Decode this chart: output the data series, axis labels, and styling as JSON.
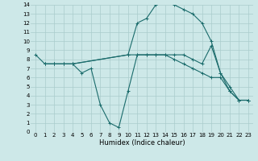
{
  "xlabel": "Humidex (Indice chaleur)",
  "xlim": [
    -0.5,
    23.5
  ],
  "ylim": [
    0,
    14
  ],
  "xticks": [
    0,
    1,
    2,
    3,
    4,
    5,
    6,
    7,
    8,
    9,
    10,
    11,
    12,
    13,
    14,
    15,
    16,
    17,
    18,
    19,
    20,
    21,
    22,
    23
  ],
  "yticks": [
    0,
    1,
    2,
    3,
    4,
    5,
    6,
    7,
    8,
    9,
    10,
    11,
    12,
    13,
    14
  ],
  "bg_color": "#cde8e8",
  "grid_color": "#aacccc",
  "line_color": "#1a6b6b",
  "lines": [
    {
      "x": [
        0,
        1,
        2,
        3,
        4,
        10,
        11,
        12,
        13,
        14,
        15,
        16,
        17,
        18,
        19,
        20,
        21,
        22,
        23
      ],
      "y": [
        8.5,
        7.5,
        7.5,
        7.5,
        7.5,
        8.5,
        12.0,
        12.5,
        14.0,
        14.5,
        14.0,
        13.5,
        13.0,
        12.0,
        10.0,
        6.5,
        5.0,
        3.5,
        3.5
      ]
    },
    {
      "x": [
        1,
        2,
        3,
        4,
        10,
        11,
        12,
        13,
        14,
        15,
        16,
        17,
        18,
        19,
        20,
        21,
        22,
        23
      ],
      "y": [
        7.5,
        7.5,
        7.5,
        7.5,
        8.5,
        8.5,
        8.5,
        8.5,
        8.5,
        8.5,
        8.5,
        8.0,
        7.5,
        9.5,
        6.5,
        4.5,
        3.5,
        3.5
      ]
    },
    {
      "x": [
        1,
        2,
        3,
        4,
        5,
        6,
        7,
        8,
        9,
        10,
        11,
        12,
        13,
        14,
        15,
        16,
        17,
        18,
        19,
        20,
        21,
        22,
        23
      ],
      "y": [
        7.5,
        7.5,
        7.5,
        7.5,
        6.5,
        7.0,
        3.0,
        1.0,
        0.5,
        4.5,
        8.5,
        8.5,
        8.5,
        8.5,
        8.0,
        7.5,
        7.0,
        6.5,
        6.0,
        6.0,
        4.5,
        3.5,
        3.5
      ]
    }
  ],
  "tick_fontsize": 5,
  "xlabel_fontsize": 6
}
